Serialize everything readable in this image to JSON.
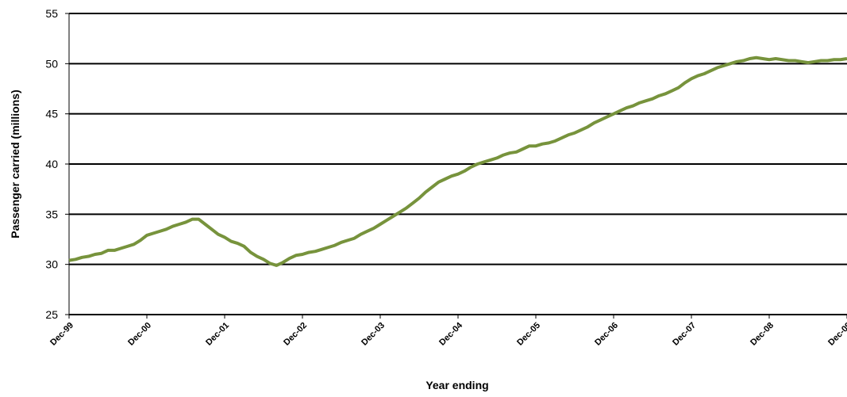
{
  "chart_data": {
    "type": "line",
    "y_label": "Passenger carried (millions)",
    "x_label": "Year ending",
    "categories": [
      "Dec-99",
      null,
      null,
      null,
      null,
      null,
      null,
      null,
      null,
      null,
      null,
      null,
      "Dec-00",
      null,
      null,
      null,
      null,
      null,
      null,
      null,
      null,
      null,
      null,
      null,
      "Dec-01",
      null,
      null,
      null,
      null,
      null,
      null,
      null,
      null,
      null,
      null,
      null,
      "Dec-02",
      null,
      null,
      null,
      null,
      null,
      null,
      null,
      null,
      null,
      null,
      null,
      "Dec-03",
      null,
      null,
      null,
      null,
      null,
      null,
      null,
      null,
      null,
      null,
      null,
      "Dec-04",
      null,
      null,
      null,
      null,
      null,
      null,
      null,
      null,
      null,
      null,
      null,
      "Dec-05",
      null,
      null,
      null,
      null,
      null,
      null,
      null,
      null,
      null,
      null,
      null,
      "Dec-06",
      null,
      null,
      null,
      null,
      null,
      null,
      null,
      null,
      null,
      null,
      null,
      "Dec-07",
      null,
      null,
      null,
      null,
      null,
      null,
      null,
      null,
      null,
      null,
      null,
      "Dec-08",
      null,
      null,
      null,
      null,
      null,
      null,
      null,
      null,
      null,
      null,
      null,
      "Dec-09"
    ],
    "values": [
      30.4,
      30.5,
      30.7,
      30.8,
      31.0,
      31.1,
      31.4,
      31.4,
      31.6,
      31.8,
      32.0,
      32.4,
      32.9,
      33.1,
      33.3,
      33.5,
      33.8,
      34.0,
      34.2,
      34.5,
      34.5,
      34.0,
      33.5,
      33.0,
      32.7,
      32.3,
      32.1,
      31.8,
      31.2,
      30.8,
      30.5,
      30.1,
      29.9,
      30.2,
      30.6,
      30.9,
      31.0,
      31.2,
      31.3,
      31.5,
      31.7,
      31.9,
      32.2,
      32.4,
      32.6,
      33.0,
      33.3,
      33.6,
      34.0,
      34.4,
      34.8,
      35.2,
      35.6,
      36.1,
      36.6,
      37.2,
      37.7,
      38.2,
      38.5,
      38.8,
      39.0,
      39.3,
      39.7,
      40.0,
      40.2,
      40.4,
      40.6,
      40.9,
      41.1,
      41.2,
      41.5,
      41.8,
      41.8,
      42.0,
      42.1,
      42.3,
      42.6,
      42.9,
      43.1,
      43.4,
      43.7,
      44.1,
      44.4,
      44.7,
      45.0,
      45.3,
      45.6,
      45.8,
      46.1,
      46.3,
      46.5,
      46.8,
      47.0,
      47.3,
      47.6,
      48.1,
      48.5,
      48.8,
      49.0,
      49.3,
      49.6,
      49.8,
      50.0,
      50.2,
      50.3,
      50.5,
      50.6,
      50.5,
      50.4,
      50.5,
      50.4,
      50.3,
      50.3,
      50.2,
      50.1,
      50.2,
      50.3,
      50.3,
      50.4,
      50.4,
      50.5
    ],
    "color": "#77933c",
    "ylim": [
      25,
      55
    ],
    "yticks": [
      25,
      30,
      35,
      40,
      45,
      50,
      55
    ],
    "grid": true
  }
}
